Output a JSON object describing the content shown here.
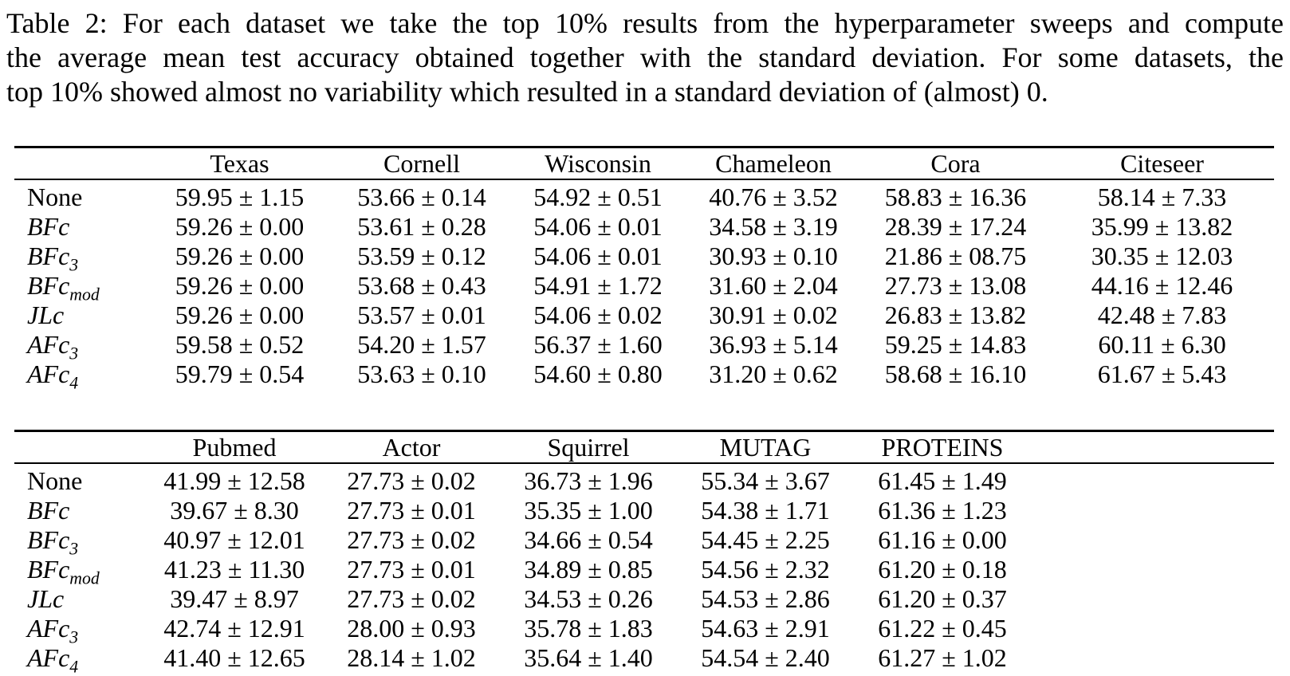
{
  "caption": {
    "lines": [
      "Table 2: For each dataset we take the top 10% results from the hyperparameter sweeps and compute",
      "the average mean test accuracy obtained together with the standard deviation. For some datasets, the",
      "top 10% showed almost no variability which resulted in a standard deviation of (almost) 0."
    ]
  },
  "tables": [
    {
      "name": "results-table-top",
      "columns": [
        "Texas",
        "Cornell",
        "Wisconsin",
        "Chameleon",
        "Cora",
        "Citeseer"
      ],
      "filler_column": false,
      "rows": [
        {
          "label": {
            "text": "None",
            "italic": false,
            "sub": ""
          },
          "values": [
            "59.95 ± 1.15",
            "53.66 ± 0.14",
            "54.92 ± 0.51",
            "40.76 ± 3.52",
            "58.83 ± 16.36",
            "58.14 ± 7.33"
          ]
        },
        {
          "label": {
            "text": "BFc",
            "italic": true,
            "sub": ""
          },
          "values": [
            "59.26 ± 0.00",
            "53.61 ± 0.28",
            "54.06 ± 0.01",
            "34.58 ± 3.19",
            "28.39 ± 17.24",
            "35.99 ± 13.82"
          ]
        },
        {
          "label": {
            "text": "BFc",
            "italic": true,
            "sub": "3"
          },
          "values": [
            "59.26 ± 0.00",
            "53.59 ± 0.12",
            "54.06 ± 0.01",
            "30.93 ± 0.10",
            "21.86 ± 08.75",
            "30.35 ± 12.03"
          ]
        },
        {
          "label": {
            "text": "BFc",
            "italic": true,
            "sub": "mod"
          },
          "values": [
            "59.26 ± 0.00",
            "53.68 ± 0.43",
            "54.91 ± 1.72",
            "31.60 ± 2.04",
            "27.73 ± 13.08",
            "44.16 ± 12.46"
          ]
        },
        {
          "label": {
            "text": "JLc",
            "italic": true,
            "sub": ""
          },
          "values": [
            "59.26 ± 0.00",
            "53.57 ± 0.01",
            "54.06 ± 0.02",
            "30.91 ± 0.02",
            "26.83 ± 13.82",
            "42.48 ± 7.83"
          ]
        },
        {
          "label": {
            "text": "AFc",
            "italic": true,
            "sub": "3"
          },
          "values": [
            "59.58 ± 0.52",
            "54.20 ± 1.57",
            "56.37 ± 1.60",
            "36.93 ± 5.14",
            "59.25 ± 14.83",
            "60.11 ± 6.30"
          ]
        },
        {
          "label": {
            "text": "AFc",
            "italic": true,
            "sub": "4"
          },
          "values": [
            "59.79 ± 0.54",
            "53.63 ± 0.10",
            "54.60 ± 0.80",
            "31.20 ± 0.62",
            "58.68 ± 16.10",
            "61.67 ± 5.43"
          ]
        }
      ]
    },
    {
      "name": "results-table-bottom",
      "columns": [
        "Pubmed",
        "Actor",
        "Squirrel",
        "MUTAG",
        "PROTEINS"
      ],
      "filler_column": true,
      "rows": [
        {
          "label": {
            "text": "None",
            "italic": false,
            "sub": ""
          },
          "values": [
            "41.99 ± 12.58",
            "27.73 ± 0.02",
            "36.73 ± 1.96",
            "55.34 ± 3.67",
            "61.45 ± 1.49"
          ]
        },
        {
          "label": {
            "text": "BFc",
            "italic": true,
            "sub": ""
          },
          "values": [
            "39.67 ± 8.30",
            "27.73 ± 0.01",
            "35.35 ± 1.00",
            "54.38 ± 1.71",
            "61.36 ± 1.23"
          ]
        },
        {
          "label": {
            "text": "BFc",
            "italic": true,
            "sub": "3"
          },
          "values": [
            "40.97 ± 12.01",
            "27.73 ± 0.02",
            "34.66 ± 0.54",
            "54.45 ± 2.25",
            "61.16 ± 0.00"
          ]
        },
        {
          "label": {
            "text": "BFc",
            "italic": true,
            "sub": "mod"
          },
          "values": [
            "41.23 ± 11.30",
            "27.73 ± 0.01",
            "34.89 ± 0.85",
            "54.56 ± 2.32",
            "61.20 ± 0.18"
          ]
        },
        {
          "label": {
            "text": "JLc",
            "italic": true,
            "sub": ""
          },
          "values": [
            "39.47 ± 8.97",
            "27.73 ± 0.02",
            "34.53 ± 0.26",
            "54.53 ± 2.86",
            "61.20 ± 0.37"
          ]
        },
        {
          "label": {
            "text": "AFc",
            "italic": true,
            "sub": "3"
          },
          "values": [
            "42.74 ± 12.91",
            "28.00 ± 0.93",
            "35.78 ± 1.83",
            "54.63 ± 2.91",
            "61.22 ± 0.45"
          ]
        },
        {
          "label": {
            "text": "AFc",
            "italic": true,
            "sub": "4"
          },
          "values": [
            "41.40 ± 12.65",
            "28.14 ± 1.02",
            "35.64 ± 1.40",
            "54.54 ± 2.40",
            "61.27 ± 1.02"
          ]
        }
      ]
    }
  ]
}
